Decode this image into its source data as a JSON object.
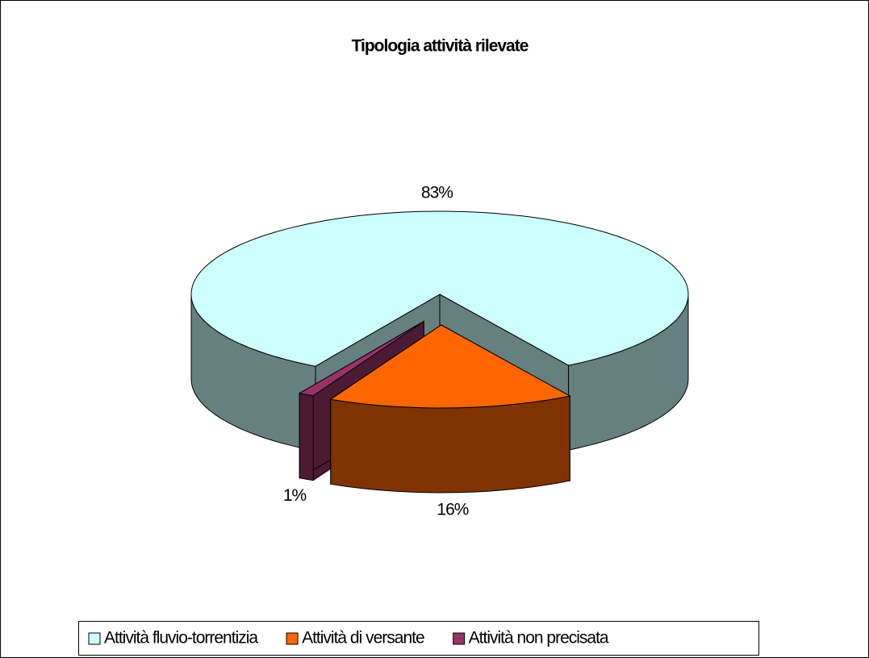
{
  "chart_data": {
    "type": "pie3d",
    "title": "Tipologia attività rilevate",
    "categories": [
      "Attività fluvio-torrentizia",
      "Attività di versante",
      "Attività non precisata"
    ],
    "values": [
      83,
      16,
      1
    ],
    "value_labels": [
      "83%",
      "16%",
      "1%"
    ],
    "colors": [
      "#ccffff",
      "#ff6600",
      "#993366"
    ],
    "legend": "bottom"
  }
}
